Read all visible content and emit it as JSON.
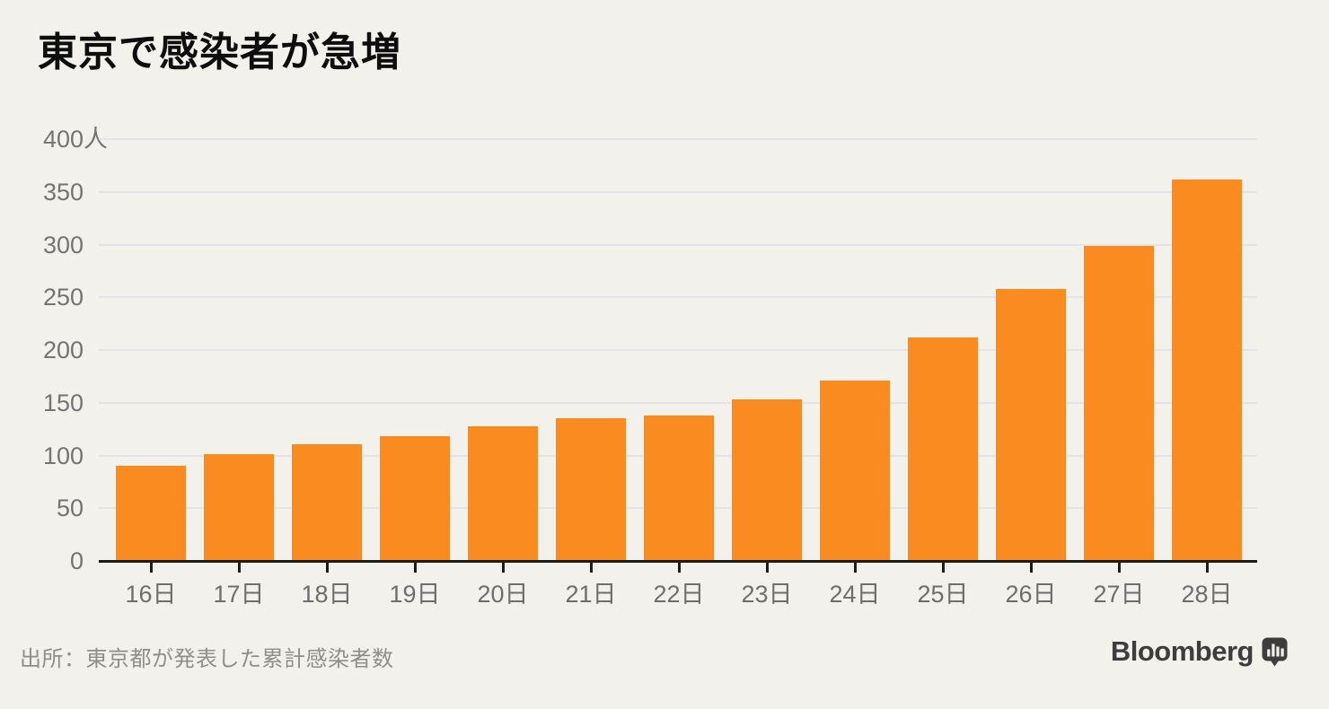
{
  "header": {
    "title": "東京で感染者が急増"
  },
  "footer": {
    "source": "出所：東京都が発表した累計感染者数",
    "brand": {
      "logo_text": "Bloomberg",
      "logo_icon": "bar-chart-bubble-icon"
    }
  },
  "colors": {
    "background": "#f2f1ec",
    "bar": "#f98b20",
    "grid": "#e4e4e8",
    "axis": "#1c1c1c",
    "title": "#0e0e0e",
    "axis_label": "#707070",
    "source": "#8f8f8a",
    "brand": "#3d3d3d"
  },
  "chart_data": {
    "type": "bar",
    "title": "東京で感染者が急増",
    "categories": [
      "16日",
      "17日",
      "18日",
      "19日",
      "20日",
      "21日",
      "22日",
      "23日",
      "24日",
      "25日",
      "26日",
      "27日",
      "28日"
    ],
    "values": [
      90,
      101,
      111,
      118,
      128,
      135,
      138,
      153,
      171,
      212,
      258,
      299,
      362
    ],
    "xlabel": "",
    "ylabel": "",
    "y_unit": "人",
    "y_ticks": [
      0,
      50,
      100,
      150,
      200,
      250,
      300,
      350,
      400
    ],
    "y_tick_labels": [
      "0",
      "50",
      "100",
      "150",
      "200",
      "250",
      "300",
      "350",
      "400人"
    ],
    "ylim": [
      0,
      400
    ],
    "grid": "horizontal",
    "legend": "none",
    "bar_color": "#f98b20"
  }
}
